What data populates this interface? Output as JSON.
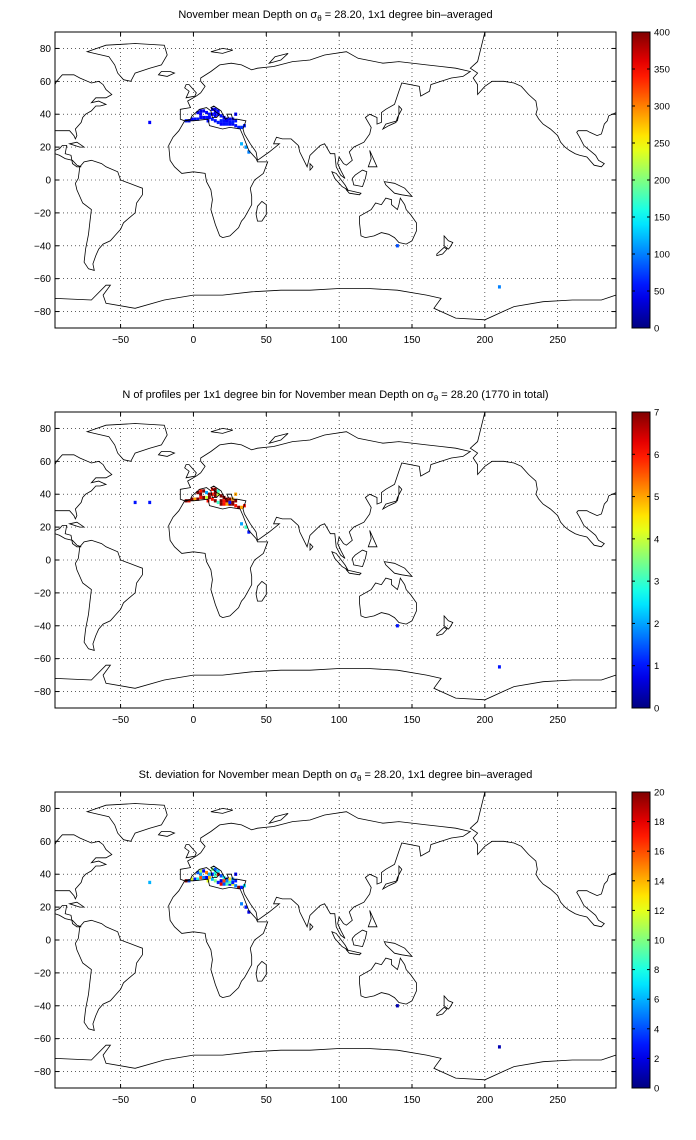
{
  "colors": {
    "frame": "#000000",
    "grid": "#000000",
    "coast": "#000000",
    "background": "#ffffff",
    "colormap": "jet"
  },
  "chart_data": [
    {
      "type": "heatmap",
      "title": "November mean Depth on σθ = 28.20, 1x1 degree bin–averaged",
      "title_parts": {
        "pre": "November mean Depth on σ",
        "sub": "θ",
        "post": " = 28.20, 1x1 degree bin–averaged"
      },
      "xlim": [
        -95,
        290
      ],
      "ylim": [
        -90,
        90
      ],
      "x_ticks": [
        -50,
        0,
        50,
        100,
        150,
        200,
        250
      ],
      "x_tick_labels": [
        "−50",
        "0",
        "50",
        "100",
        "150",
        "200",
        "250"
      ],
      "y_ticks": [
        -80,
        -60,
        -40,
        -20,
        0,
        20,
        40,
        60,
        80
      ],
      "y_tick_labels": [
        "−80",
        "−60",
        "−40",
        "−20",
        "0",
        "20",
        "40",
        "60",
        "80"
      ],
      "grid": true,
      "colorbar": {
        "position": "right",
        "range": [
          0,
          400
        ],
        "ticks": [
          0,
          50,
          100,
          150,
          200,
          250,
          300,
          350,
          400
        ],
        "tick_labels": [
          "0",
          "50",
          "100",
          "150",
          "200",
          "250",
          "300",
          "350",
          "400"
        ]
      },
      "data_summary": {
        "region": "Mediterranean Sea",
        "lon_range": [
          -5,
          36
        ],
        "lat_range": [
          31,
          45
        ],
        "value_range": [
          0,
          120
        ],
        "typical_value": 55
      },
      "cells": [
        [
          -5,
          36,
          60
        ],
        [
          -3,
          36,
          55
        ],
        [
          -1,
          37,
          50
        ],
        [
          1,
          37,
          55
        ],
        [
          3,
          37,
          60
        ],
        [
          5,
          38,
          50
        ],
        [
          7,
          38,
          45
        ],
        [
          9,
          38,
          55
        ],
        [
          11,
          38,
          50
        ],
        [
          13,
          37,
          60
        ],
        [
          15,
          36,
          55
        ],
        [
          17,
          35,
          60
        ],
        [
          19,
          34,
          50
        ],
        [
          21,
          34,
          55
        ],
        [
          23,
          34,
          60
        ],
        [
          25,
          34,
          50
        ],
        [
          27,
          34,
          45
        ],
        [
          29,
          33,
          55
        ],
        [
          31,
          32,
          60
        ],
        [
          33,
          32,
          70
        ],
        [
          35,
          33,
          60
        ],
        [
          3,
          41,
          45
        ],
        [
          5,
          42,
          40
        ],
        [
          7,
          42,
          45
        ],
        [
          9,
          41,
          50
        ],
        [
          11,
          40,
          55
        ],
        [
          13,
          40,
          50
        ],
        [
          15,
          39,
          45
        ],
        [
          17,
          40,
          50
        ],
        [
          19,
          39,
          55
        ],
        [
          21,
          38,
          45
        ],
        [
          23,
          37,
          50
        ],
        [
          25,
          37,
          45
        ],
        [
          27,
          37,
          50
        ],
        [
          29,
          36,
          55
        ],
        [
          13,
          43,
          40
        ],
        [
          15,
          43,
          45
        ],
        [
          17,
          42,
          50
        ],
        [
          19,
          36,
          60
        ],
        [
          21,
          36,
          55
        ],
        [
          23,
          36,
          50
        ],
        [
          25,
          35,
          55
        ],
        [
          27,
          35,
          60
        ],
        [
          10,
          36,
          55
        ],
        [
          5,
          40,
          50
        ],
        [
          29,
          40,
          45
        ],
        [
          15,
          41,
          50
        ],
        [
          33,
          22,
          120
        ],
        [
          36,
          20,
          110
        ],
        [
          38,
          17,
          100
        ],
        [
          -30,
          35,
          50
        ],
        [
          140,
          -40,
          80
        ],
        [
          210,
          -65,
          100
        ]
      ]
    },
    {
      "type": "heatmap",
      "title": "N of profiles per 1x1 degree bin for November mean Depth on σθ = 28.20 (1770 in total)",
      "title_parts": {
        "pre": "N of profiles per 1x1 degree bin for November mean Depth on σ",
        "sub": "θ",
        "post": " = 28.20 (1770 in total)"
      },
      "xlim": [
        -95,
        290
      ],
      "ylim": [
        -90,
        90
      ],
      "x_ticks": [
        -50,
        0,
        50,
        100,
        150,
        200,
        250
      ],
      "x_tick_labels": [
        "−50",
        "0",
        "50",
        "100",
        "150",
        "200",
        "250"
      ],
      "y_ticks": [
        -80,
        -60,
        -40,
        -20,
        0,
        20,
        40,
        60,
        80
      ],
      "y_tick_labels": [
        "−80",
        "−60",
        "−40",
        "−20",
        "0",
        "20",
        "40",
        "60",
        "80"
      ],
      "grid": true,
      "colorbar": {
        "position": "right",
        "range": [
          0,
          7
        ],
        "ticks": [
          0,
          1,
          2,
          3,
          4,
          5,
          6,
          7
        ],
        "tick_labels": [
          "0",
          "1",
          "2",
          "3",
          "4",
          "5",
          "6",
          "7"
        ]
      },
      "data_summary": {
        "region": "Mediterranean Sea",
        "lon_range": [
          -5,
          36
        ],
        "lat_range": [
          31,
          45
        ],
        "value_range": [
          1,
          7
        ],
        "total_profiles": 1770
      },
      "cells": [
        [
          -5,
          36,
          7
        ],
        [
          -3,
          36,
          6
        ],
        [
          -1,
          37,
          7
        ],
        [
          1,
          37,
          5
        ],
        [
          3,
          37,
          7
        ],
        [
          5,
          38,
          6
        ],
        [
          7,
          38,
          7
        ],
        [
          9,
          38,
          4
        ],
        [
          11,
          38,
          7
        ],
        [
          13,
          37,
          6
        ],
        [
          15,
          36,
          7
        ],
        [
          17,
          35,
          3
        ],
        [
          19,
          34,
          7
        ],
        [
          21,
          34,
          6
        ],
        [
          23,
          34,
          5
        ],
        [
          25,
          34,
          7
        ],
        [
          27,
          34,
          7
        ],
        [
          29,
          33,
          6
        ],
        [
          31,
          32,
          7
        ],
        [
          33,
          32,
          5
        ],
        [
          35,
          33,
          6
        ],
        [
          3,
          41,
          7
        ],
        [
          5,
          42,
          6
        ],
        [
          7,
          42,
          7
        ],
        [
          9,
          41,
          2
        ],
        [
          11,
          40,
          7
        ],
        [
          13,
          40,
          6
        ],
        [
          15,
          39,
          7
        ],
        [
          17,
          40,
          4
        ],
        [
          19,
          39,
          7
        ],
        [
          21,
          38,
          7
        ],
        [
          23,
          37,
          6
        ],
        [
          25,
          37,
          7
        ],
        [
          27,
          37,
          5
        ],
        [
          29,
          36,
          7
        ],
        [
          13,
          43,
          6
        ],
        [
          15,
          43,
          7
        ],
        [
          17,
          42,
          3
        ],
        [
          19,
          36,
          7
        ],
        [
          21,
          36,
          6
        ],
        [
          23,
          36,
          7
        ],
        [
          25,
          35,
          1
        ],
        [
          27,
          35,
          7
        ],
        [
          10,
          36,
          6
        ],
        [
          5,
          40,
          7
        ],
        [
          29,
          40,
          5
        ],
        [
          15,
          41,
          7
        ],
        [
          33,
          22,
          2
        ],
        [
          36,
          20,
          3
        ],
        [
          38,
          17,
          1
        ],
        [
          -30,
          35,
          1
        ],
        [
          -40,
          35,
          1
        ],
        [
          140,
          -40,
          1
        ],
        [
          210,
          -65,
          1
        ]
      ]
    },
    {
      "type": "heatmap",
      "title": "St. deviation for November mean Depth on σθ = 28.20, 1x1 degree bin–averaged",
      "title_parts": {
        "pre": "St. deviation for November mean Depth on σ",
        "sub": "θ",
        "post": " = 28.20, 1x1 degree bin–averaged"
      },
      "xlim": [
        -95,
        290
      ],
      "ylim": [
        -90,
        90
      ],
      "x_ticks": [
        -50,
        0,
        50,
        100,
        150,
        200,
        250
      ],
      "x_tick_labels": [
        "−50",
        "0",
        "50",
        "100",
        "150",
        "200",
        "250"
      ],
      "y_ticks": [
        -80,
        -60,
        -40,
        -20,
        0,
        20,
        40,
        60,
        80
      ],
      "y_tick_labels": [
        "−80",
        "−60",
        "−40",
        "−20",
        "0",
        "20",
        "40",
        "60",
        "80"
      ],
      "grid": true,
      "colorbar": {
        "position": "right",
        "range": [
          0,
          20
        ],
        "ticks": [
          0,
          2,
          4,
          6,
          8,
          10,
          12,
          14,
          16,
          18,
          20
        ],
        "tick_labels": [
          "0",
          "2",
          "4",
          "6",
          "8",
          "10",
          "12",
          "14",
          "16",
          "18",
          "20"
        ]
      },
      "data_summary": {
        "region": "Mediterranean Sea",
        "lon_range": [
          -5,
          36
        ],
        "lat_range": [
          31,
          45
        ],
        "value_range": [
          0,
          20
        ]
      },
      "cells": [
        [
          -5,
          36,
          20
        ],
        [
          -3,
          36,
          4
        ],
        [
          -1,
          37,
          12
        ],
        [
          1,
          37,
          3
        ],
        [
          3,
          37,
          8
        ],
        [
          5,
          38,
          16
        ],
        [
          7,
          38,
          5
        ],
        [
          9,
          38,
          2
        ],
        [
          11,
          38,
          14
        ],
        [
          13,
          37,
          6
        ],
        [
          15,
          36,
          10
        ],
        [
          17,
          35,
          3
        ],
        [
          19,
          34,
          18
        ],
        [
          21,
          34,
          4
        ],
        [
          23,
          34,
          9
        ],
        [
          25,
          34,
          2
        ],
        [
          27,
          34,
          12
        ],
        [
          29,
          33,
          5
        ],
        [
          31,
          32,
          20
        ],
        [
          33,
          32,
          3
        ],
        [
          35,
          33,
          7
        ],
        [
          3,
          41,
          4
        ],
        [
          5,
          42,
          11
        ],
        [
          7,
          42,
          2
        ],
        [
          9,
          41,
          15
        ],
        [
          11,
          40,
          6
        ],
        [
          13,
          40,
          3
        ],
        [
          15,
          39,
          9
        ],
        [
          17,
          40,
          19
        ],
        [
          19,
          39,
          4
        ],
        [
          21,
          38,
          8
        ],
        [
          23,
          37,
          2
        ],
        [
          25,
          37,
          13
        ],
        [
          27,
          37,
          5
        ],
        [
          29,
          36,
          3
        ],
        [
          13,
          43,
          10
        ],
        [
          15,
          43,
          4
        ],
        [
          17,
          42,
          7
        ],
        [
          19,
          36,
          2
        ],
        [
          21,
          36,
          16
        ],
        [
          23,
          36,
          5
        ],
        [
          25,
          35,
          9
        ],
        [
          27,
          35,
          3
        ],
        [
          10,
          36,
          12
        ],
        [
          5,
          40,
          6
        ],
        [
          29,
          40,
          2
        ],
        [
          15,
          41,
          8
        ],
        [
          33,
          22,
          5
        ],
        [
          36,
          20,
          3
        ],
        [
          38,
          17,
          2
        ],
        [
          -30,
          35,
          6
        ],
        [
          140,
          -40,
          1
        ],
        [
          210,
          -65,
          1
        ]
      ]
    }
  ]
}
